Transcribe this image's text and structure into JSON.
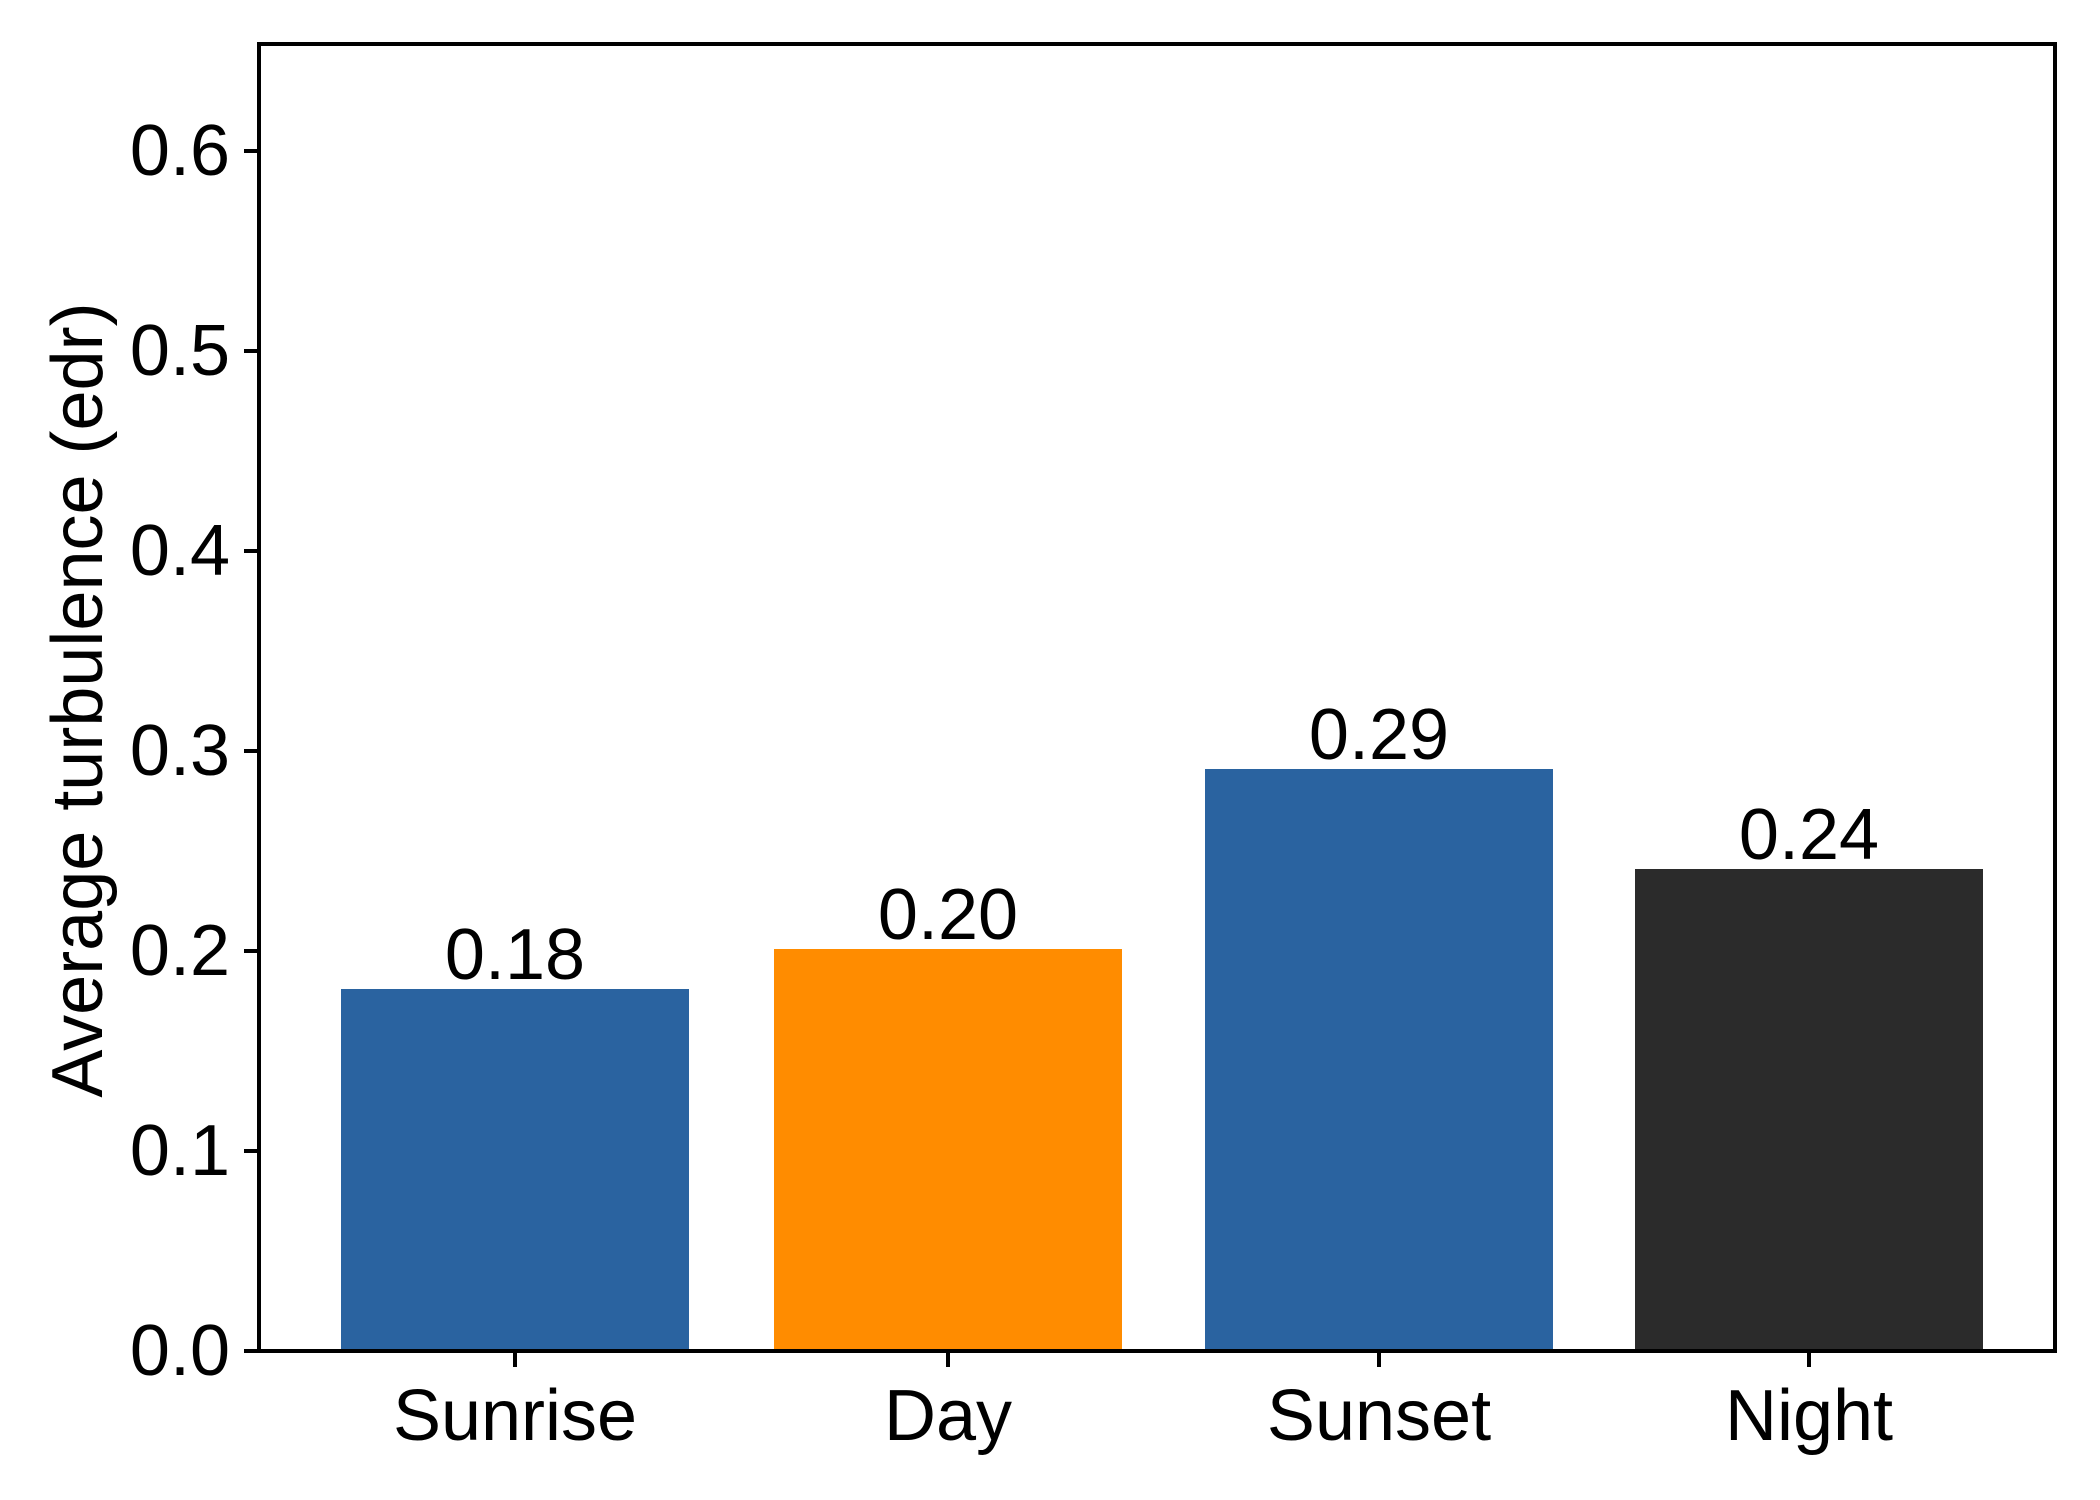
{
  "chart_data": {
    "type": "bar",
    "title": "",
    "xlabel": "",
    "ylabel": "Average turbulence (edr)",
    "categories": [
      "Sunrise",
      "Day",
      "Sunset",
      "Night"
    ],
    "values": [
      0.18,
      0.2,
      0.29,
      0.24
    ],
    "value_labels": [
      "0.18",
      "0.20",
      "0.29",
      "0.24"
    ],
    "bar_colors": [
      "#2a63a0",
      "#ff8c00",
      "#2a63a0",
      "#2b2b2b"
    ],
    "ytick_labels": [
      "0.0",
      "0.1",
      "0.2",
      "0.3",
      "0.4",
      "0.5",
      "0.6"
    ],
    "ytick_values": [
      0.0,
      0.1,
      0.2,
      0.3,
      0.4,
      0.5,
      0.6
    ],
    "ylim": [
      0,
      0.65
    ],
    "grid": false,
    "legend": null,
    "axis_color": "#000000",
    "text_color": "#000000",
    "background_color": "#ffffff"
  }
}
